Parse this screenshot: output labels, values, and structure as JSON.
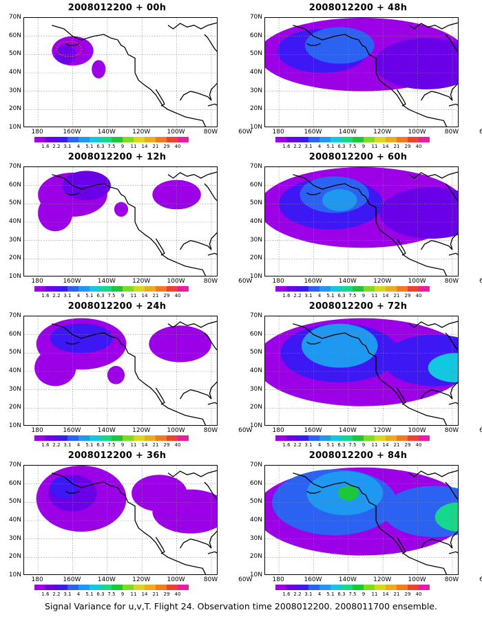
{
  "caption": "Signal Variance for u,v,T. Flight 24. Observation time 2008012200. 2008011700 ensemble.",
  "lat_labels": [
    "70N",
    "60N",
    "50N",
    "40N",
    "30N",
    "20N",
    "10N"
  ],
  "lon_labels": [
    "180",
    "160W",
    "140W",
    "120W",
    "100W",
    "80W",
    "60W"
  ],
  "colorbar": {
    "levels": [
      "1.6",
      "2.2",
      "3.1",
      "4",
      "5.1",
      "6.3",
      "7.5",
      "9",
      "11",
      "14",
      "21",
      "29",
      "40"
    ],
    "colors": [
      "#9b00e6",
      "#6a00e8",
      "#3d18f5",
      "#2b62f2",
      "#1e98f0",
      "#12c8e0",
      "#14d88c",
      "#1ac83a",
      "#7cdc20",
      "#d6d81e",
      "#ecac1e",
      "#f47a22",
      "#f2402e",
      "#ee1aa0"
    ]
  },
  "panels": [
    {
      "title": "2008012200 + 00h",
      "hour": 0
    },
    {
      "title": "2008012200 + 48h",
      "hour": 48
    },
    {
      "title": "2008012200 + 12h",
      "hour": 12
    },
    {
      "title": "2008012200 + 60h",
      "hour": 60
    },
    {
      "title": "2008012200 + 24h",
      "hour": 24
    },
    {
      "title": "2008012200 + 72h",
      "hour": 72
    },
    {
      "title": "2008012200 + 36h",
      "hour": 36
    },
    {
      "title": "2008012200 + 84h",
      "hour": 84
    }
  ]
}
